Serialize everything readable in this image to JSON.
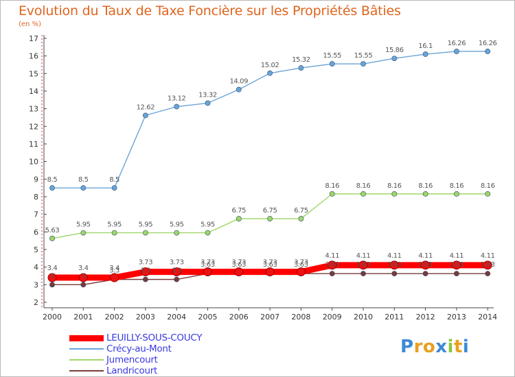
{
  "title": "Evolution du Taux de Taxe Foncière sur les Propriétés Bâties",
  "unit_label": "(en %)",
  "logo": {
    "letters": [
      "P",
      "r",
      "o",
      "x",
      "i",
      "t",
      "i"
    ],
    "colors": [
      "#3b8ad8",
      "#e8a020",
      "#e8a020",
      "#3b8ad8",
      "#8cc63f",
      "#e8a020",
      "#3b8ad8"
    ]
  },
  "chart_data": {
    "type": "line",
    "title": "Evolution du Taux de Taxe Foncière sur les Propriétés Bâties",
    "ylabel": "(en %)",
    "x": [
      "2000",
      "2001",
      "2002",
      "2003",
      "2004",
      "2005",
      "2006",
      "2007",
      "2008",
      "2009",
      "2010",
      "2011",
      "2012",
      "2013",
      "2014"
    ],
    "ylim": [
      2,
      17
    ],
    "yticks": [
      "2",
      "3",
      "4",
      "5",
      "6",
      "7",
      "8",
      "9",
      "10",
      "11",
      "12",
      "13",
      "14",
      "15",
      "16",
      "17"
    ],
    "grid": false,
    "legend_position": "bottom-left",
    "series": [
      {
        "name": "LEUILLY-SOUS-COUCY",
        "color": "#ff0000",
        "values": [
          3.4,
          3.4,
          3.4,
          3.73,
          3.73,
          3.73,
          3.73,
          3.73,
          3.73,
          4.11,
          4.11,
          4.11,
          4.11,
          4.11,
          4.11
        ],
        "labels": [
          "3.4",
          "3.4",
          "3.4",
          "3.73",
          "3.73",
          "3.73",
          "3.73",
          "3.73",
          "3.73",
          "4.11",
          "4.11",
          "4.11",
          "4.11",
          "4.11",
          "4.11"
        ]
      },
      {
        "name": "Crécy-au-Mont",
        "color": "#6aa3d8",
        "values": [
          8.5,
          8.5,
          8.5,
          12.62,
          13.12,
          13.32,
          14.09,
          15.02,
          15.32,
          15.55,
          15.55,
          15.86,
          16.1,
          16.26,
          16.26
        ],
        "labels": [
          "8.5",
          "8.5",
          "8.5",
          "12.62",
          "13.12",
          "13.32",
          "14.09",
          "15.02",
          "15.32",
          "15.55",
          "15.55",
          "15.86",
          "16.1",
          "16.26",
          "16.26"
        ]
      },
      {
        "name": "Jumencourt",
        "color": "#9fd667",
        "values": [
          5.63,
          5.95,
          5.95,
          5.95,
          5.95,
          5.95,
          6.75,
          6.75,
          6.75,
          8.16,
          8.16,
          8.16,
          8.16,
          8.16,
          8.16
        ],
        "labels": [
          "5.63",
          "5.95",
          "5.95",
          "5.95",
          "5.95",
          "5.95",
          "6.75",
          "6.75",
          "6.75",
          "8.16",
          "8.16",
          "8.16",
          "8.16",
          "8.16",
          "8.16"
        ]
      },
      {
        "name": "Landricourt",
        "color": "#7a3a3a",
        "values": [
          3.0,
          3.0,
          3.3,
          3.3,
          3.3,
          3.63,
          3.63,
          3.63,
          3.63,
          3.63,
          3.63,
          3.63,
          3.63,
          3.63,
          3.63
        ],
        "labels": [
          "3",
          "3",
          "3.3",
          "3.3",
          "3.3",
          "3.63",
          "3.63",
          "3.63",
          "3.63",
          "3.63",
          "3.63",
          "3.63",
          "3.63",
          "3.63",
          "3.63"
        ]
      }
    ]
  }
}
